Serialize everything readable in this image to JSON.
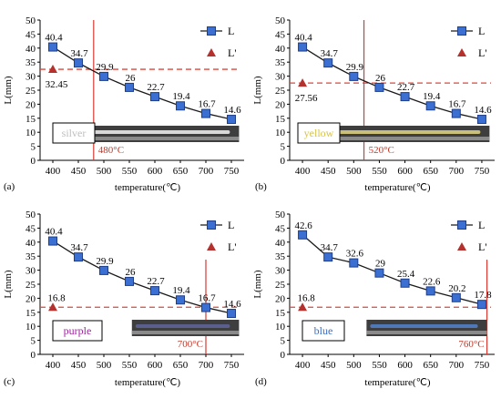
{
  "colors": {
    "line": "#1a1a1a",
    "marker_fill": "#3b6fd1",
    "marker_stroke": "#1f3f8a",
    "triangle": "#b5312e",
    "ref_dash": "#e0453a",
    "vline": "#d93a32",
    "temp_text": "#c0392b",
    "axis": "#000000"
  },
  "chart_data": [
    {
      "type": "line",
      "panel_label": "(a)",
      "xlabel": "temperature(℃)",
      "ylabel": "L(mm)",
      "x": [
        400,
        450,
        500,
        550,
        600,
        650,
        700,
        750
      ],
      "xlim": [
        375,
        775
      ],
      "ylim": [
        0,
        50
      ],
      "yticks": [
        0,
        5,
        10,
        15,
        20,
        25,
        30,
        35,
        40,
        45,
        50
      ],
      "series": [
        {
          "name": "L",
          "values": [
            40.4,
            34.7,
            29.9,
            26,
            22.7,
            19.4,
            16.7,
            14.6
          ],
          "labels": [
            "40.4",
            "34.7",
            "29.9",
            "26",
            "22.7",
            "19.4",
            "16.7",
            "14.6"
          ]
        },
        {
          "name": "L'",
          "points": [
            [
              400,
              32.45
            ]
          ],
          "labels": [
            "32.45"
          ]
        }
      ],
      "legend": [
        "L",
        "L'"
      ],
      "legend_position": "top-right",
      "reference_line_y": 32.45,
      "vertical_line_x": 480,
      "vertical_line_label": "480°C",
      "color_label": "silver",
      "color_label_color": "#bfbfbf"
    },
    {
      "type": "line",
      "panel_label": "(b)",
      "xlabel": "temperature(℃)",
      "ylabel": "L(mm)",
      "x": [
        400,
        450,
        500,
        550,
        600,
        650,
        700,
        750
      ],
      "xlim": [
        375,
        775
      ],
      "ylim": [
        0,
        50
      ],
      "yticks": [
        0,
        5,
        10,
        15,
        20,
        25,
        30,
        35,
        40,
        45,
        50
      ],
      "series": [
        {
          "name": "L",
          "values": [
            40.4,
            34.7,
            29.9,
            26,
            22.7,
            19.4,
            16.7,
            14.6
          ],
          "labels": [
            "40.4",
            "34.7",
            "29.9",
            "26",
            "22.7",
            "19.4",
            "16.7",
            "14.6"
          ]
        },
        {
          "name": "L'",
          "points": [
            [
              400,
              27.56
            ]
          ],
          "labels": [
            "27.56"
          ]
        }
      ],
      "legend": [
        "L",
        "L'"
      ],
      "legend_position": "top-right",
      "reference_line_y": 27.56,
      "vertical_line_x": 520,
      "vertical_line_label": "520°C",
      "color_label": "yellow",
      "color_label_color": "#d6c24a"
    },
    {
      "type": "line",
      "panel_label": "(c)",
      "xlabel": "temperature(℃)",
      "ylabel": "L(mm)",
      "x": [
        400,
        450,
        500,
        550,
        600,
        650,
        700,
        750
      ],
      "xlim": [
        375,
        775
      ],
      "ylim": [
        0,
        50
      ],
      "yticks": [
        0,
        5,
        10,
        15,
        20,
        25,
        30,
        35,
        40,
        45,
        50
      ],
      "series": [
        {
          "name": "L",
          "values": [
            40.4,
            34.7,
            29.9,
            26,
            22.7,
            19.4,
            16.7,
            14.6
          ],
          "labels": [
            "40.4",
            "34.7",
            "29.9",
            "26",
            "22.7",
            "19.4",
            "16.7",
            "14.6"
          ]
        },
        {
          "name": "L'",
          "points": [
            [
              400,
              16.8
            ]
          ],
          "labels": [
            "16.8"
          ]
        }
      ],
      "legend": [
        "L",
        "L'"
      ],
      "legend_position": "top-right",
      "reference_line_y": 16.8,
      "vertical_line_x": 700,
      "vertical_line_label": "700°C",
      "color_label": "purple",
      "color_label_color": "#a020a0"
    },
    {
      "type": "line",
      "panel_label": "(d)",
      "xlabel": "temperature(℃)",
      "ylabel": "L(mm)",
      "x": [
        400,
        450,
        500,
        550,
        600,
        650,
        700,
        750
      ],
      "xlim": [
        375,
        775
      ],
      "ylim": [
        0,
        50
      ],
      "yticks": [
        0,
        5,
        10,
        15,
        20,
        25,
        30,
        35,
        40,
        45,
        50
      ],
      "series": [
        {
          "name": "L",
          "values": [
            42.6,
            34.7,
            32.6,
            29,
            25.4,
            22.6,
            20.2,
            17.8
          ],
          "labels": [
            "42.6",
            "34.7",
            "32.6",
            "29",
            "25.4",
            "22.6",
            "20.2",
            "17.8"
          ]
        },
        {
          "name": "L'",
          "points": [
            [
              400,
              16.8
            ]
          ],
          "labels": [
            "16.8"
          ]
        }
      ],
      "legend": [
        "L",
        "L'"
      ],
      "legend_position": "top-right",
      "reference_line_y": 16.8,
      "vertical_line_x": 760,
      "vertical_line_label": "760°C",
      "color_label": "blue",
      "color_label_color": "#3a6fc4"
    }
  ]
}
